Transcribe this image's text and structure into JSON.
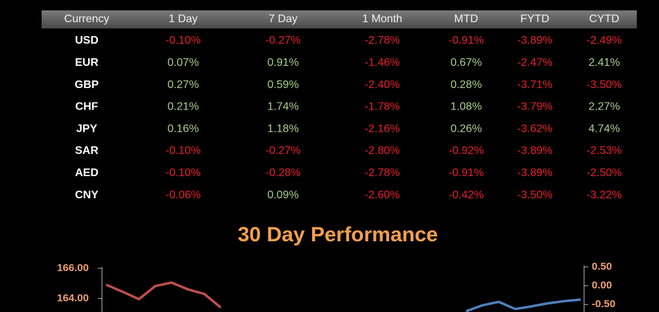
{
  "table": {
    "columns": [
      "Currency",
      "1 Day",
      "7 Day",
      "1 Month",
      "MTD",
      "FYTD",
      "CYTD"
    ],
    "rows": [
      [
        "USD",
        "-0.10%",
        "-0.27%",
        "-2.78%",
        "-0.91%",
        "-3.89%",
        "-2.49%"
      ],
      [
        "EUR",
        "0.07%",
        "0.91%",
        "-1.46%",
        "0.67%",
        "-2.47%",
        "2.41%"
      ],
      [
        "GBP",
        "0.27%",
        "0.59%",
        "-2.40%",
        "0.28%",
        "-3.71%",
        "-3.50%"
      ],
      [
        "CHF",
        "0.21%",
        "1.74%",
        "-1.78%",
        "1.08%",
        "-3.79%",
        "2.27%"
      ],
      [
        "JPY",
        "0.16%",
        "1.18%",
        "-2.16%",
        "0.26%",
        "-3.62%",
        "4.74%"
      ],
      [
        "SAR",
        "-0.10%",
        "-0.27%",
        "-2.80%",
        "-0.92%",
        "-3.89%",
        "-2.53%"
      ],
      [
        "AED",
        "-0.10%",
        "-0.28%",
        "-2.78%",
        "-0.91%",
        "-3.89%",
        "-2.50%"
      ],
      [
        "CNY",
        "-0.06%",
        "0.09%",
        "-2.60%",
        "-0.42%",
        "-3.50%",
        "-3.22%"
      ]
    ]
  },
  "chart_data": {
    "type": "line",
    "title": "30 Day Performance",
    "categories": [
      null,
      null,
      null,
      null,
      null,
      null,
      null,
      null,
      null,
      null,
      null,
      null,
      null,
      null,
      null,
      null,
      null,
      null,
      null,
      null,
      null,
      null,
      null,
      null,
      null,
      null,
      null,
      null,
      null,
      null
    ],
    "series": [
      {
        "color": "#c0504d",
        "values": [
          164.91,
          164.45,
          163.95,
          164.82,
          165.05,
          164.6,
          164.3,
          163.4,
          null,
          null,
          null,
          null,
          null,
          null,
          null,
          null,
          null,
          null,
          null,
          null,
          null,
          null,
          null,
          null,
          null,
          null,
          null,
          null,
          null,
          null
        ]
      },
      {
        "color": "#4f81bd",
        "axis": "y2",
        "values": [
          null,
          null,
          null,
          null,
          null,
          null,
          null,
          null,
          null,
          null,
          null,
          null,
          null,
          null,
          null,
          null,
          null,
          null,
          null,
          null,
          null,
          null,
          -0.68,
          -0.52,
          -0.43,
          -0.62,
          -0.55,
          -0.47,
          -0.41,
          -0.37
        ]
      }
    ],
    "ylim": [
      163.1,
      166.0
    ],
    "yticks": [
      {
        "value": 166,
        "label": "166.00"
      },
      {
        "value": 164,
        "label": "164.00"
      }
    ],
    "y2lim": [
      -0.7,
      0.5
    ],
    "y2ticks": [
      {
        "value": 0.5,
        "label": "0.50"
      },
      {
        "value": 0,
        "label": "0.00"
      },
      {
        "value": -0.5,
        "label": "-0.50"
      }
    ]
  }
}
